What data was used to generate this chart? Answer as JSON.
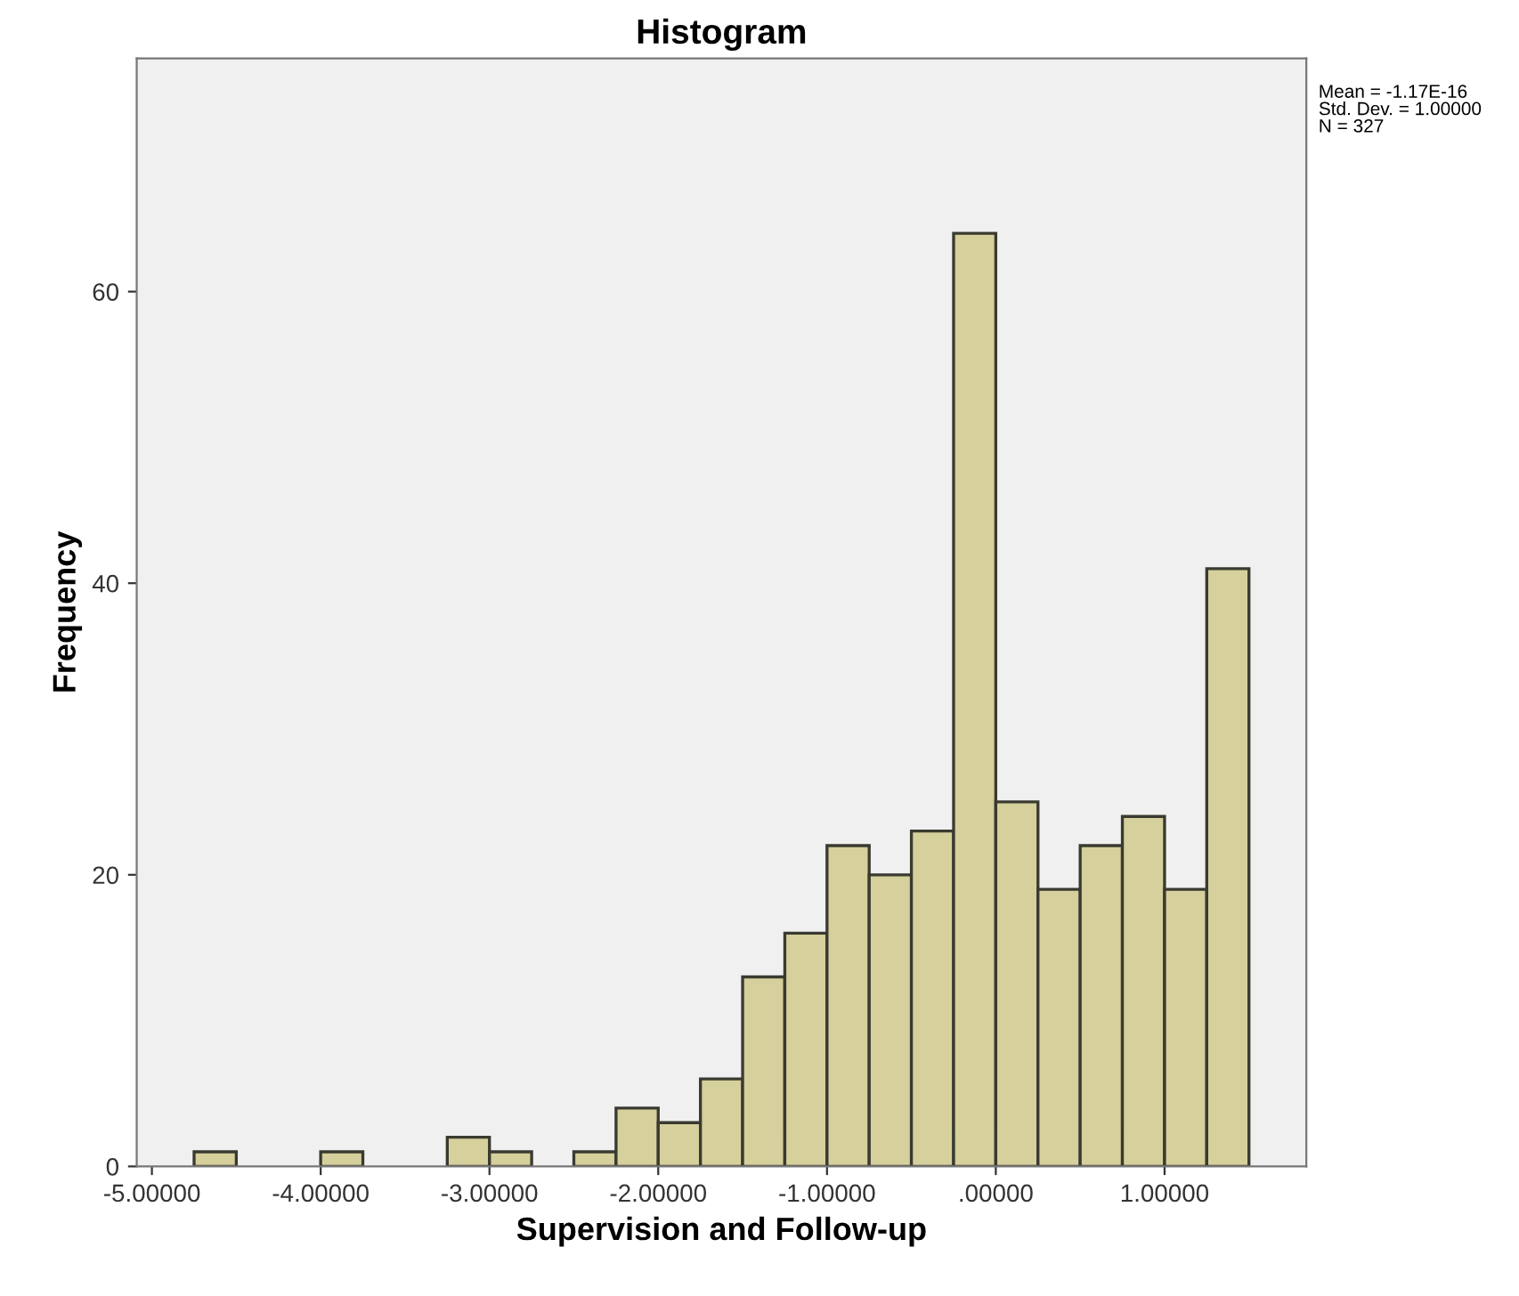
{
  "chart_data": {
    "type": "histogram",
    "title": "Histogram",
    "xlabel": "Supervision and Follow-up",
    "ylabel": "Frequency",
    "bins": [
      -4.75,
      -4.5,
      -4.25,
      -4.0,
      -3.75,
      -3.5,
      -3.25,
      -3.0,
      -2.75,
      -2.5,
      -2.25,
      -2.0,
      -1.75,
      -1.5,
      -1.25,
      -1.0,
      -0.75,
      -0.5,
      -0.25,
      0.0,
      0.25,
      0.5,
      0.75,
      1.0,
      1.25,
      1.5
    ],
    "values": [
      1,
      0,
      0,
      1,
      0,
      0,
      2,
      1,
      0,
      1,
      4,
      3,
      6,
      13,
      16,
      22,
      20,
      23,
      64,
      25,
      19,
      22,
      24,
      19,
      41
    ],
    "color": "#d5d09c",
    "xlim": [
      -5.09,
      1.84
    ],
    "ylim": [
      0,
      76
    ],
    "xticks": [
      {
        "value": -5,
        "label": "-5.00000"
      },
      {
        "value": -4,
        "label": "-4.00000"
      },
      {
        "value": -3,
        "label": "-3.00000"
      },
      {
        "value": -2,
        "label": "-2.00000"
      },
      {
        "value": -1,
        "label": "-1.00000"
      },
      {
        "value": 0,
        "label": ".00000"
      },
      {
        "value": 1,
        "label": "1.00000"
      }
    ],
    "yticks": [
      0,
      20,
      40,
      60
    ],
    "grid": false,
    "annotations": [
      "Mean = -1.17E-16\nStd. Dev. = 1.00000\nN = 327"
    ]
  }
}
